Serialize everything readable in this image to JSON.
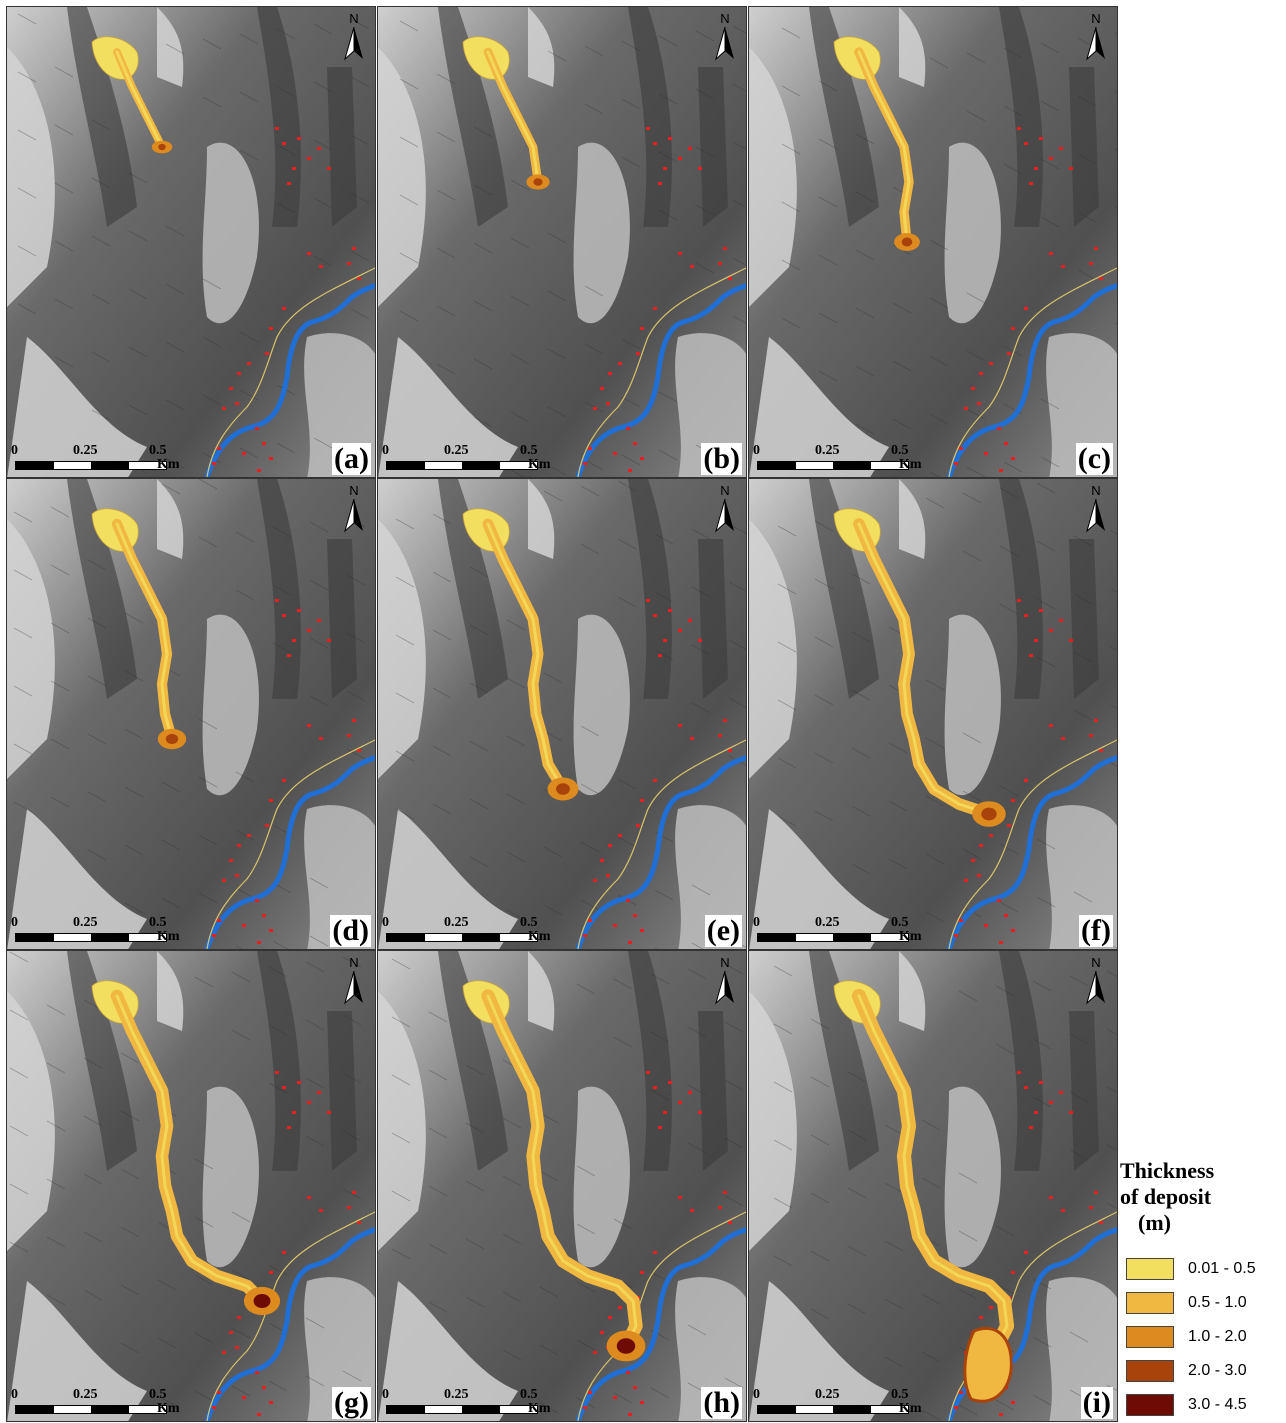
{
  "panels": [
    {
      "label": "(a)",
      "stage": 1
    },
    {
      "label": "(b)",
      "stage": 2
    },
    {
      "label": "(c)",
      "stage": 3
    },
    {
      "label": "(d)",
      "stage": 4
    },
    {
      "label": "(e)",
      "stage": 5
    },
    {
      "label": "(f)",
      "stage": 6
    },
    {
      "label": "(g)",
      "stage": 7
    },
    {
      "label": "(h)",
      "stage": 8
    },
    {
      "label": "(i)",
      "stage": 9
    }
  ],
  "north_label": "N",
  "scale_bar": {
    "ticks": [
      "0",
      "0.25",
      "0.5"
    ],
    "unit": "Km"
  },
  "legend": {
    "title_line1": "Thickness",
    "title_line2": "of deposit",
    "title_unit": "(m)",
    "items": [
      {
        "label": "0.01 - 0.5",
        "color": "#f3df5f"
      },
      {
        "label": "0.5 - 1.0",
        "color": "#f0b840"
      },
      {
        "label": "1.0 - 2.0",
        "color": "#dd8a1e"
      },
      {
        "label": "2.0 - 3.0",
        "color": "#a9430c"
      },
      {
        "label": "3.0 - 4.5",
        "color": "#6e0b05"
      }
    ]
  },
  "colors": {
    "river": "#1f6fd6",
    "buildings": "#e62020",
    "terrain_dark": "#4a4a4a",
    "terrain_light": "#d9d9d9"
  }
}
